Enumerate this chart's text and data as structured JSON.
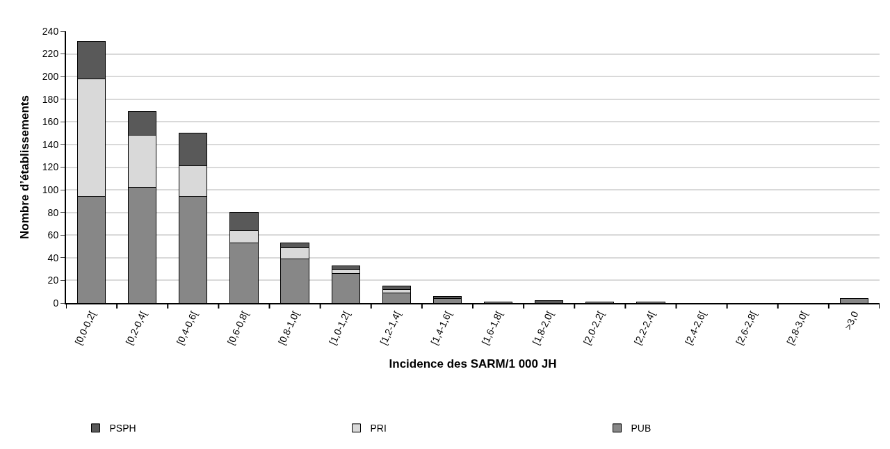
{
  "chart_data": {
    "type": "bar",
    "stacked": true,
    "xlabel": "Incidence des SARM/1 000 JH",
    "ylabel": "Nombre d’établissements",
    "categories": [
      "[0,0-0,2[",
      "[0,2-0,4[",
      "[0,4-0,6[",
      "[0,6-0,8[",
      "[0,8-1,0[",
      "[1,0-1,2[",
      "[1,2-1,4[",
      "[1,4-1,6[",
      "[1,6-1,8[",
      "[1,8-2,0[",
      "[2,0-2,2[",
      "[2,2-2,4[",
      "[2,4-2,6[",
      "[2,6-2,8[",
      "[2,8-3,0[",
      ">3,0"
    ],
    "series": [
      {
        "name": "PUB",
        "color": "#878787",
        "values": [
          94,
          102,
          94,
          53,
          39,
          26,
          9,
          4,
          1,
          null,
          1,
          1,
          0,
          0,
          0,
          4
        ]
      },
      {
        "name": "PRI",
        "color": "#d9d9d9",
        "values": [
          104,
          46,
          27,
          11,
          10,
          4,
          3,
          0,
          0,
          0,
          0,
          0,
          0,
          0,
          0,
          0
        ]
      },
      {
        "name": "PSPH",
        "color": "#595959",
        "values": [
          33,
          21,
          29,
          16,
          4,
          3,
          3,
          2,
          0,
          2,
          0,
          0,
          0,
          0,
          0,
          0
        ]
      }
    ],
    "ylim": [
      0,
      240
    ],
    "yticks": [
      0,
      20,
      40,
      60,
      80,
      100,
      120,
      140,
      160,
      180,
      200,
      220,
      240
    ],
    "grid": "y",
    "legend": "bottom"
  }
}
